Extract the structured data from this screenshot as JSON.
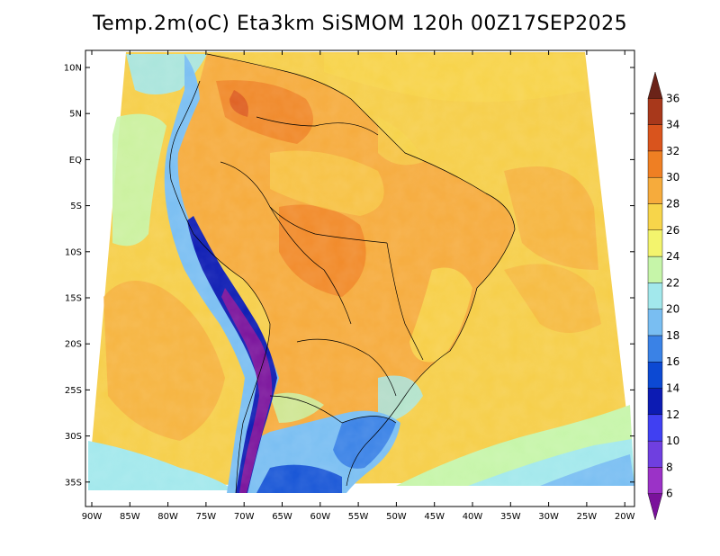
{
  "title": "Temp.2m(oC) Eta3km SiSMOM 120h 00Z17SEP2025",
  "axes": {
    "lat_labels": [
      "10N",
      "5N",
      "EQ",
      "5S",
      "10S",
      "15S",
      "20S",
      "25S",
      "30S",
      "35S"
    ],
    "lon_labels": [
      "90W",
      "85W",
      "80W",
      "75W",
      "70W",
      "65W",
      "60W",
      "55W",
      "50W",
      "45W",
      "40W",
      "35W",
      "30W",
      "25W",
      "20W"
    ]
  },
  "colorbar": {
    "unit": "oC",
    "labels": [
      "6",
      "8",
      "10",
      "12",
      "14",
      "16",
      "18",
      "20",
      "22",
      "24",
      "26",
      "28",
      "30",
      "32",
      "34",
      "36"
    ],
    "colors": [
      "#7a129b",
      "#9b32c7",
      "#6f3fe0",
      "#4040f2",
      "#0c1bb3",
      "#0c49d3",
      "#3a82e6",
      "#79bef2",
      "#a2e8ec",
      "#c6f5a9",
      "#f3f46d",
      "#f7d54a",
      "#f6ab3c",
      "#ef7f23",
      "#d9541d",
      "#a8381b",
      "#6b2318"
    ]
  },
  "map": {
    "region": "South America and adjacent Atlantic / Pacific",
    "forecast_hour": "120h",
    "valid": "00Z17SEP2025"
  }
}
